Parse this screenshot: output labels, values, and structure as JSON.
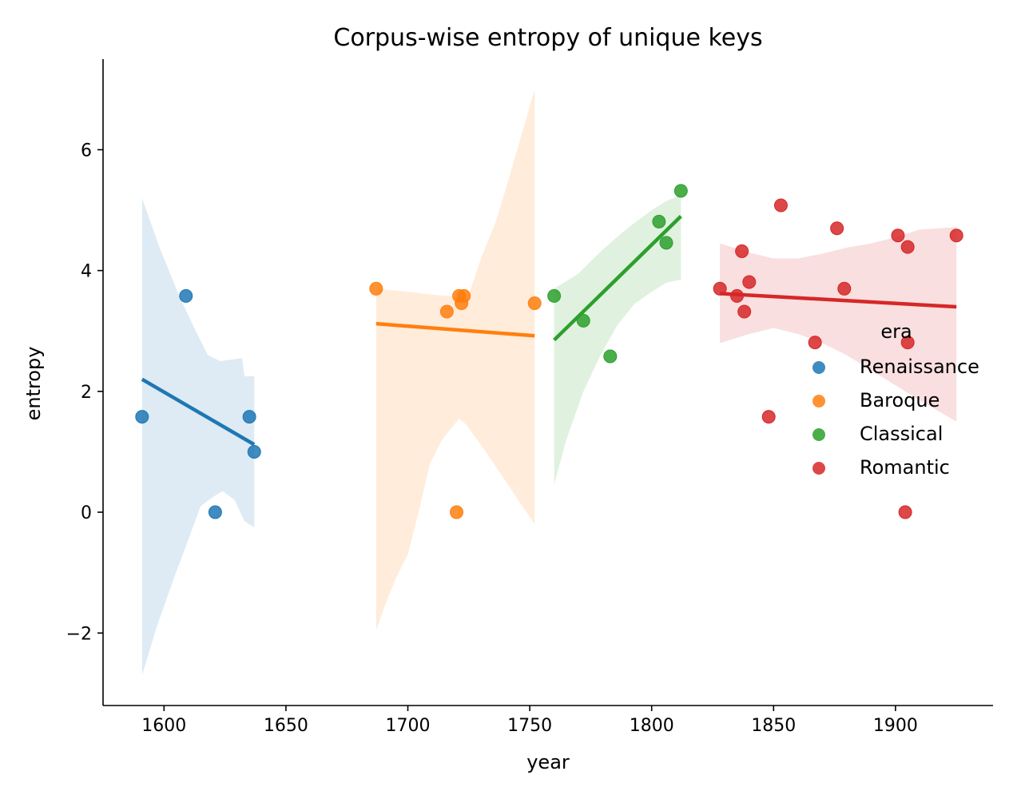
{
  "chart_data": {
    "type": "scatter",
    "title": "Corpus-wise entropy of unique keys",
    "xlabel": "year",
    "ylabel": "entropy",
    "xlim": [
      1575,
      1940
    ],
    "ylim": [
      -3.2,
      7.5
    ],
    "xticks": [
      1600,
      1650,
      1700,
      1750,
      1800,
      1850,
      1900
    ],
    "yticks": [
      -2,
      0,
      2,
      4,
      6
    ],
    "xtick_labels": [
      "1600",
      "1650",
      "1700",
      "1750",
      "1800",
      "1850",
      "1900"
    ],
    "ytick_labels": [
      "−2",
      "0",
      "2",
      "4",
      "6"
    ],
    "grid": false,
    "legend": {
      "title": "era",
      "position": "right"
    },
    "series": [
      {
        "name": "Renaissance",
        "color": "#1f77b4",
        "points": [
          [
            1591,
            1.58
          ],
          [
            1609,
            3.58
          ],
          [
            1621,
            0.0
          ],
          [
            1635,
            1.58
          ],
          [
            1637,
            1.0
          ]
        ],
        "fit": [
          [
            1591,
            2.2
          ],
          [
            1637,
            1.12
          ]
        ],
        "band_upper": [
          [
            1591,
            5.2
          ],
          [
            1598,
            4.4
          ],
          [
            1606,
            3.6
          ],
          [
            1613,
            3.0
          ],
          [
            1618,
            2.6
          ],
          [
            1623,
            2.5
          ],
          [
            1632,
            2.55
          ],
          [
            1633,
            2.25
          ],
          [
            1637,
            2.25
          ]
        ],
        "band_lower": [
          [
            1591,
            -2.7
          ],
          [
            1597,
            -1.9
          ],
          [
            1604,
            -1.1
          ],
          [
            1610,
            -0.45
          ],
          [
            1615,
            0.1
          ],
          [
            1620,
            0.25
          ],
          [
            1624,
            0.35
          ],
          [
            1629,
            0.2
          ],
          [
            1633,
            -0.15
          ],
          [
            1637,
            -0.25
          ]
        ]
      },
      {
        "name": "Baroque",
        "color": "#ff7f0e",
        "points": [
          [
            1687,
            3.7
          ],
          [
            1716,
            3.32
          ],
          [
            1721,
            3.58
          ],
          [
            1722,
            3.46
          ],
          [
            1723,
            3.58
          ],
          [
            1720,
            0.0
          ],
          [
            1752,
            3.46
          ]
        ],
        "fit": [
          [
            1687,
            3.12
          ],
          [
            1752,
            2.92
          ]
        ],
        "band_upper": [
          [
            1687,
            3.7
          ],
          [
            1700,
            3.65
          ],
          [
            1710,
            3.6
          ],
          [
            1720,
            3.57
          ],
          [
            1725,
            3.6
          ],
          [
            1730,
            4.2
          ],
          [
            1736,
            4.8
          ],
          [
            1742,
            5.6
          ],
          [
            1747,
            6.3
          ],
          [
            1752,
            7.0
          ]
        ],
        "band_lower": [
          [
            1687,
            -1.95
          ],
          [
            1691,
            -1.5
          ],
          [
            1695,
            -1.1
          ],
          [
            1700,
            -0.7
          ],
          [
            1705,
            0.1
          ],
          [
            1709,
            0.8
          ],
          [
            1714,
            1.2
          ],
          [
            1718,
            1.4
          ],
          [
            1721,
            1.55
          ],
          [
            1724,
            1.45
          ],
          [
            1732,
            1.0
          ],
          [
            1742,
            0.4
          ],
          [
            1752,
            -0.2
          ]
        ]
      },
      {
        "name": "Classical",
        "color": "#2ca02c",
        "points": [
          [
            1760,
            3.58
          ],
          [
            1772,
            3.17
          ],
          [
            1783,
            2.58
          ],
          [
            1803,
            4.81
          ],
          [
            1806,
            4.46
          ],
          [
            1812,
            5.32
          ]
        ],
        "fit": [
          [
            1760,
            2.85
          ],
          [
            1812,
            4.9
          ]
        ],
        "band_upper": [
          [
            1760,
            3.7
          ],
          [
            1770,
            3.95
          ],
          [
            1780,
            4.35
          ],
          [
            1790,
            4.7
          ],
          [
            1800,
            5.0
          ],
          [
            1806,
            5.15
          ],
          [
            1812,
            5.25
          ]
        ],
        "band_lower": [
          [
            1760,
            0.45
          ],
          [
            1765,
            1.2
          ],
          [
            1772,
            2.0
          ],
          [
            1779,
            2.6
          ],
          [
            1786,
            3.1
          ],
          [
            1793,
            3.45
          ],
          [
            1800,
            3.65
          ],
          [
            1806,
            3.8
          ],
          [
            1812,
            3.85
          ]
        ]
      },
      {
        "name": "Romantic",
        "color": "#d62728",
        "points": [
          [
            1828,
            3.7
          ],
          [
            1835,
            3.58
          ],
          [
            1837,
            4.32
          ],
          [
            1838,
            3.32
          ],
          [
            1840,
            3.81
          ],
          [
            1848,
            1.58
          ],
          [
            1853,
            5.08
          ],
          [
            1867,
            2.81
          ],
          [
            1876,
            4.7
          ],
          [
            1879,
            3.7
          ],
          [
            1901,
            4.58
          ],
          [
            1904,
            0.0
          ],
          [
            1905,
            4.39
          ],
          [
            1905,
            2.81
          ],
          [
            1925,
            4.58
          ]
        ],
        "fit": [
          [
            1828,
            3.62
          ],
          [
            1925,
            3.4
          ]
        ],
        "band_upper": [
          [
            1828,
            4.45
          ],
          [
            1840,
            4.3
          ],
          [
            1850,
            4.2
          ],
          [
            1860,
            4.2
          ],
          [
            1870,
            4.28
          ],
          [
            1880,
            4.38
          ],
          [
            1890,
            4.45
          ],
          [
            1900,
            4.55
          ],
          [
            1910,
            4.68
          ],
          [
            1925,
            4.72
          ]
        ],
        "band_lower": [
          [
            1828,
            2.8
          ],
          [
            1840,
            2.95
          ],
          [
            1850,
            3.05
          ],
          [
            1860,
            2.95
          ],
          [
            1870,
            2.8
          ],
          [
            1880,
            2.6
          ],
          [
            1890,
            2.35
          ],
          [
            1900,
            2.1
          ],
          [
            1910,
            1.85
          ],
          [
            1925,
            1.5
          ]
        ]
      }
    ]
  }
}
